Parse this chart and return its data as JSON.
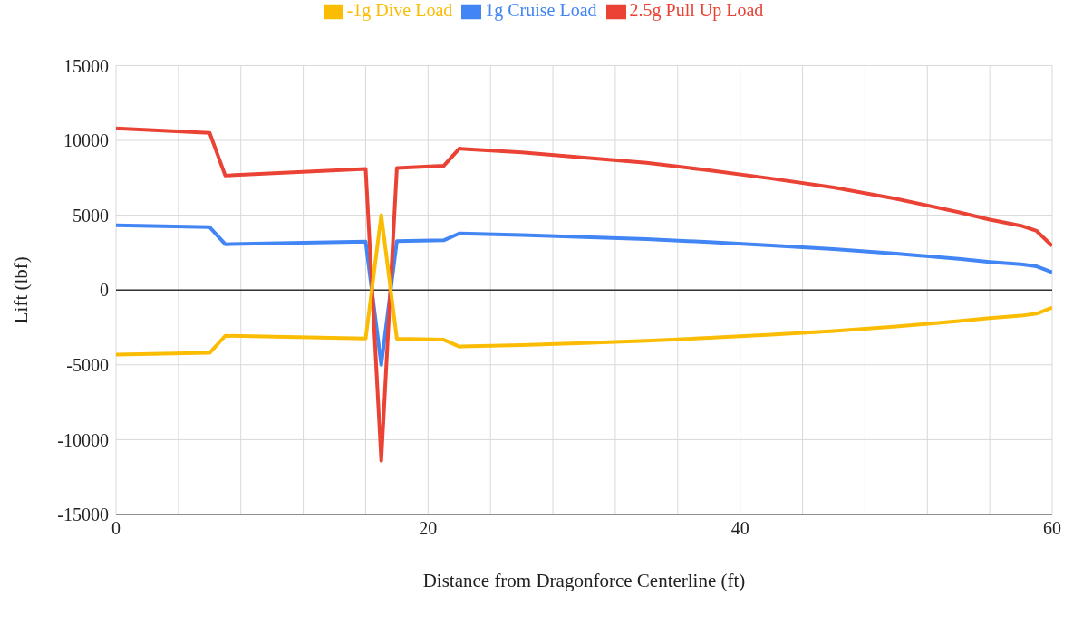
{
  "chart_data": {
    "type": "line",
    "xlabel": "Distance from Dragonforce Centerline (ft)",
    "ylabel": "Lift (lbf)",
    "x": [
      0,
      6,
      7,
      16,
      17,
      18,
      21,
      22,
      26,
      30,
      34,
      38,
      42,
      46,
      50,
      54,
      56,
      58,
      59,
      60
    ],
    "series": [
      {
        "name": "1g Cruise Load",
        "color": "#4285f4",
        "values": [
          4320,
          4200,
          3060,
          3240,
          -5000,
          3260,
          3320,
          3780,
          3680,
          3540,
          3400,
          3200,
          2980,
          2740,
          2440,
          2080,
          1880,
          1720,
          1580,
          1180
        ]
      },
      {
        "name": "2.5g Pull Up Load",
        "color": "#ea4335",
        "values": [
          10800,
          10500,
          7650,
          8100,
          -11400,
          8150,
          8300,
          9450,
          9200,
          8850,
          8500,
          8000,
          7450,
          6850,
          6100,
          5200,
          4700,
          4300,
          3950,
          2950
        ]
      },
      {
        "name": "-1g Dive Load",
        "color": "#fbbc04",
        "values": [
          -4320,
          -4200,
          -3060,
          -3240,
          5000,
          -3260,
          -3320,
          -3780,
          -3680,
          -3540,
          -3400,
          -3200,
          -2980,
          -2740,
          -2440,
          -2080,
          -1880,
          -1720,
          -1580,
          -1180
        ]
      }
    ],
    "xlim": [
      0,
      60
    ],
    "xticks": [
      0,
      {
        "value": 4,
        "label": null
      },
      {
        "value": 8,
        "label": null
      },
      {
        "value": 12,
        "label": null
      },
      {
        "value": 16,
        "label": null
      },
      20,
      {
        "value": 24,
        "label": null
      },
      {
        "value": 28,
        "label": null
      },
      {
        "value": 32,
        "label": null
      },
      {
        "value": 36,
        "label": null
      },
      40,
      {
        "value": 44,
        "label": null
      },
      {
        "value": 48,
        "label": null
      },
      {
        "value": 52,
        "label": null
      },
      {
        "value": 56,
        "label": null
      },
      60
    ],
    "ylim": [
      -15000,
      15000
    ],
    "yticks": [
      -15000,
      -10000,
      -5000,
      0,
      5000,
      10000,
      15000
    ],
    "ref_lines": [
      {
        "axis": "y",
        "value": 0,
        "color": "#333333"
      }
    ],
    "grid": true,
    "legend": "top",
    "marker": "none",
    "line_style": "solid"
  }
}
